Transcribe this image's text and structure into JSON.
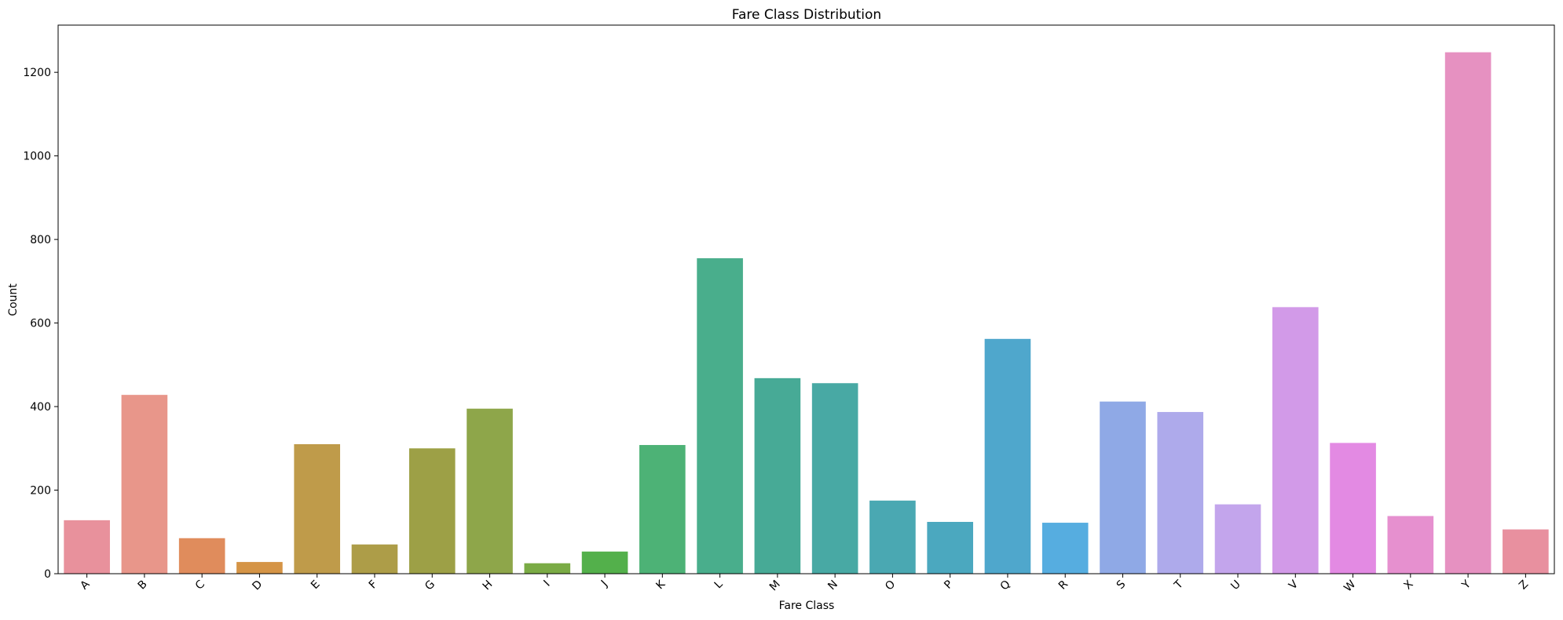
{
  "chart_data": {
    "type": "bar",
    "title": "Fare Class Distribution",
    "xlabel": "Fare Class",
    "ylabel": "Count",
    "categories": [
      "A",
      "B",
      "C",
      "D",
      "E",
      "F",
      "G",
      "H",
      "I",
      "J",
      "K",
      "L",
      "M",
      "N",
      "O",
      "P",
      "Q",
      "R",
      "S",
      "T",
      "U",
      "V",
      "W",
      "X",
      "Y",
      "Z"
    ],
    "values": [
      128,
      428,
      85,
      28,
      310,
      70,
      300,
      395,
      25,
      53,
      308,
      755,
      468,
      456,
      175,
      124,
      562,
      122,
      412,
      387,
      166,
      638,
      313,
      138,
      1248,
      106
    ],
    "ylim": [
      0,
      1313
    ],
    "yticks": [
      0,
      200,
      400,
      600,
      800,
      1000,
      1200
    ],
    "grid": false,
    "legend": "none",
    "colors": [
      "#e8919c",
      "#e8968a",
      "#e08c5c",
      "#d59446",
      "#bf9b4a",
      "#ad9d48",
      "#9da046",
      "#8ea64a",
      "#7aab45",
      "#53b04b",
      "#4db276",
      "#49ae8c",
      "#47aa96",
      "#48a9a4",
      "#4aa8b2",
      "#4ba8bf",
      "#4fa7cc",
      "#56ade0",
      "#8fa9e6",
      "#aeaaeb",
      "#c3a5ec",
      "#d29ae8",
      "#e38ae3",
      "#e690cf",
      "#e691c1",
      "#e8909f"
    ]
  }
}
